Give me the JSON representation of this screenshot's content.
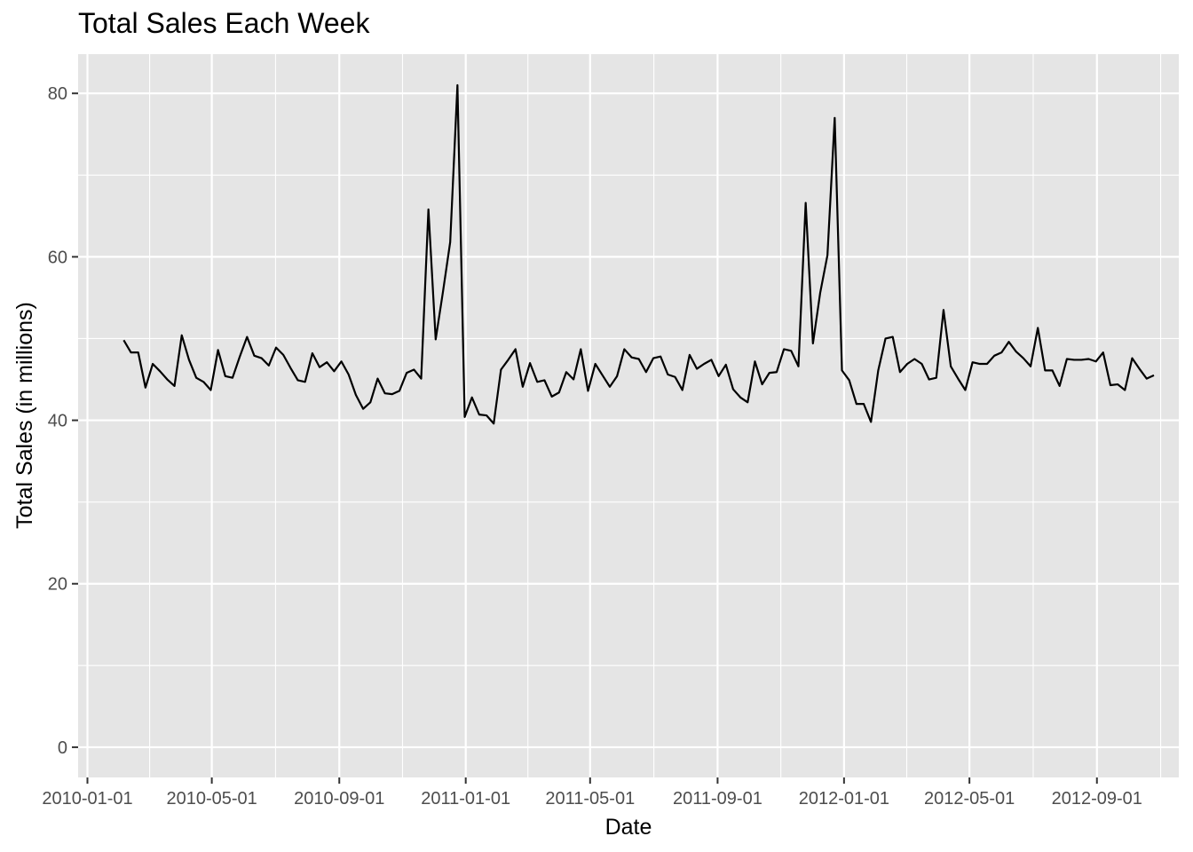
{
  "chart_data": {
    "type": "line",
    "title": "Total Sales Each Week",
    "xlabel": "Date",
    "ylabel": "Total Sales (in millions)",
    "xlim": [
      "2009-12-23",
      "2012-11-19"
    ],
    "ylim": [
      -3.7,
      84.8
    ],
    "grid": true,
    "x_ticks": [
      "2010-01-01",
      "2010-05-01",
      "2010-09-01",
      "2011-01-01",
      "2011-05-01",
      "2011-09-01",
      "2012-01-01",
      "2012-05-01",
      "2012-09-01"
    ],
    "y_ticks": [
      0,
      20,
      40,
      60,
      80
    ],
    "colors": {
      "panel": "#e5e5e5",
      "grid": "#ffffff",
      "line": "#000000"
    },
    "series": [
      {
        "start": "2010-02-05",
        "step_days": 7,
        "values": [
          49.8,
          48.3,
          48.3,
          44.0,
          46.9,
          46.0,
          45.0,
          44.2,
          50.4,
          47.4,
          45.2,
          44.7,
          43.7,
          48.6,
          45.4,
          45.2,
          47.8,
          50.2,
          47.9,
          47.6,
          46.7,
          48.9,
          48.0,
          46.4,
          44.9,
          44.7,
          48.2,
          46.5,
          47.1,
          46.0,
          47.2,
          45.6,
          43.1,
          41.4,
          42.2,
          45.1,
          43.3,
          43.2,
          43.6,
          45.8,
          46.2,
          45.1,
          65.8,
          49.9,
          55.7,
          61.8,
          81.0,
          40.4,
          42.8,
          40.7,
          40.6,
          39.6,
          46.2,
          47.4,
          48.7,
          44.1,
          47.0,
          44.7,
          44.9,
          42.9,
          43.4,
          45.9,
          45.0,
          48.7,
          43.6,
          46.9,
          45.5,
          44.1,
          45.4,
          48.7,
          47.7,
          47.5,
          45.9,
          47.6,
          47.8,
          45.6,
          45.3,
          43.7,
          48.0,
          46.3,
          46.9,
          47.4,
          45.4,
          46.8,
          43.8,
          42.8,
          42.2,
          47.2,
          44.4,
          45.8,
          45.9,
          48.7,
          48.5,
          46.6,
          66.6,
          49.4,
          55.6,
          60.2,
          77.0,
          46.1,
          44.9,
          42.0,
          42.0,
          39.8,
          46.1,
          50.0,
          50.2,
          45.9,
          46.9,
          47.5,
          46.9,
          45.0,
          45.2,
          53.5,
          46.6,
          45.1,
          43.7,
          47.1,
          46.9,
          46.9,
          47.9,
          48.3,
          49.6,
          48.4,
          47.6,
          46.6,
          51.3,
          46.1,
          46.1,
          44.2,
          47.5,
          47.4,
          47.4,
          47.5,
          47.2,
          48.3,
          44.3,
          44.4,
          43.7,
          47.6,
          46.3,
          45.1,
          45.5
        ]
      }
    ]
  }
}
